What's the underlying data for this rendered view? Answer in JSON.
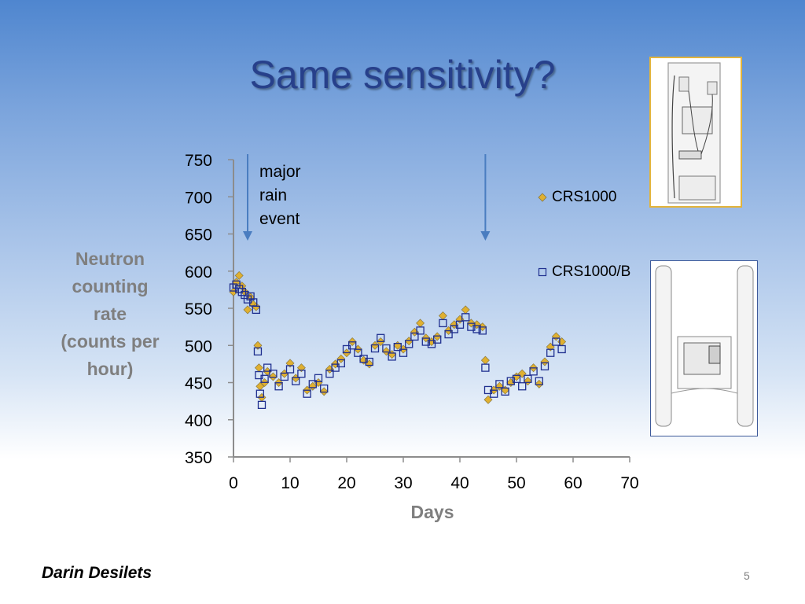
{
  "slide": {
    "title": "Same sensitivity?",
    "footer_author": "Darin Desilets",
    "page_number": "5"
  },
  "annotation": {
    "lines": [
      "major",
      "rain",
      "event"
    ]
  },
  "images": {
    "photo_top": "sensor-enclosure-interior-icon",
    "photo_bottom": "sensor-unit-with-tubes-icon"
  },
  "colors": {
    "title": "#27408b",
    "axis_label": "#7f7f7f",
    "series_crs1000": "#e0b030",
    "series_crs1000b": "#1f2f8f",
    "arrow": "#4a7dc0"
  },
  "chart_data": {
    "type": "scatter",
    "xlabel": "Days",
    "ylabel_lines": [
      "Neutron",
      "counting",
      "rate",
      "(counts per",
      "hour)"
    ],
    "xlim": [
      0,
      70
    ],
    "ylim": [
      350,
      750
    ],
    "xticks": [
      0,
      10,
      20,
      30,
      40,
      50,
      60,
      70
    ],
    "yticks": [
      350,
      400,
      450,
      500,
      550,
      600,
      650,
      700,
      750
    ],
    "grid": false,
    "legend_placement": "right",
    "arrows_x": [
      2.5,
      44.5
    ],
    "series": [
      {
        "name": "CRS1000",
        "marker": "diamond",
        "x": [
          0,
          0.5,
          1,
          1.5,
          2,
          2.5,
          3,
          3.5,
          4,
          4.3,
          4.5,
          4.7,
          5,
          5.5,
          6,
          7,
          8,
          9,
          10,
          11,
          12,
          13,
          14,
          15,
          16,
          17,
          18,
          19,
          20,
          21,
          22,
          23,
          24,
          25,
          26,
          27,
          28,
          29,
          30,
          31,
          32,
          33,
          34,
          35,
          36,
          37,
          38,
          39,
          40,
          41,
          42,
          43,
          44,
          44.5,
          45,
          46,
          47,
          48,
          49,
          50,
          51,
          52,
          53,
          54,
          55,
          56,
          57,
          58
        ],
        "y": [
          572,
          585,
          594,
          580,
          572,
          548,
          565,
          555,
          552,
          500,
          470,
          445,
          430,
          450,
          465,
          458,
          450,
          462,
          476,
          456,
          470,
          440,
          445,
          450,
          438,
          468,
          475,
          482,
          490,
          505,
          495,
          480,
          475,
          500,
          505,
          492,
          488,
          500,
          495,
          506,
          518,
          530,
          510,
          505,
          512,
          540,
          520,
          528,
          535,
          548,
          530,
          528,
          525,
          480,
          427,
          440,
          445,
          440,
          450,
          458,
          462,
          452,
          470,
          448,
          478,
          498,
          512,
          505
        ]
      },
      {
        "name": "CRS1000/B",
        "marker": "square",
        "x": [
          0,
          0.5,
          1,
          1.5,
          2,
          2.5,
          3,
          3.5,
          4,
          4.3,
          4.5,
          4.7,
          5,
          5.5,
          6,
          7,
          8,
          9,
          10,
          11,
          12,
          13,
          14,
          15,
          16,
          17,
          18,
          19,
          20,
          21,
          22,
          23,
          24,
          25,
          26,
          27,
          28,
          29,
          30,
          31,
          32,
          33,
          34,
          35,
          36,
          37,
          38,
          39,
          40,
          41,
          42,
          43,
          44,
          44.5,
          45,
          46,
          47,
          48,
          49,
          50,
          51,
          52,
          53,
          54,
          55,
          56,
          57,
          58
        ],
        "y": [
          578,
          582,
          576,
          572,
          568,
          562,
          566,
          558,
          548,
          492,
          460,
          435,
          420,
          455,
          470,
          462,
          445,
          458,
          468,
          452,
          462,
          435,
          448,
          456,
          442,
          462,
          470,
          476,
          495,
          500,
          490,
          482,
          478,
          496,
          510,
          496,
          485,
          498,
          490,
          502,
          512,
          520,
          505,
          502,
          508,
          530,
          515,
          522,
          528,
          538,
          525,
          522,
          520,
          470,
          440,
          435,
          448,
          438,
          452,
          455,
          445,
          455,
          465,
          452,
          472,
          490,
          505,
          495
        ]
      }
    ]
  }
}
